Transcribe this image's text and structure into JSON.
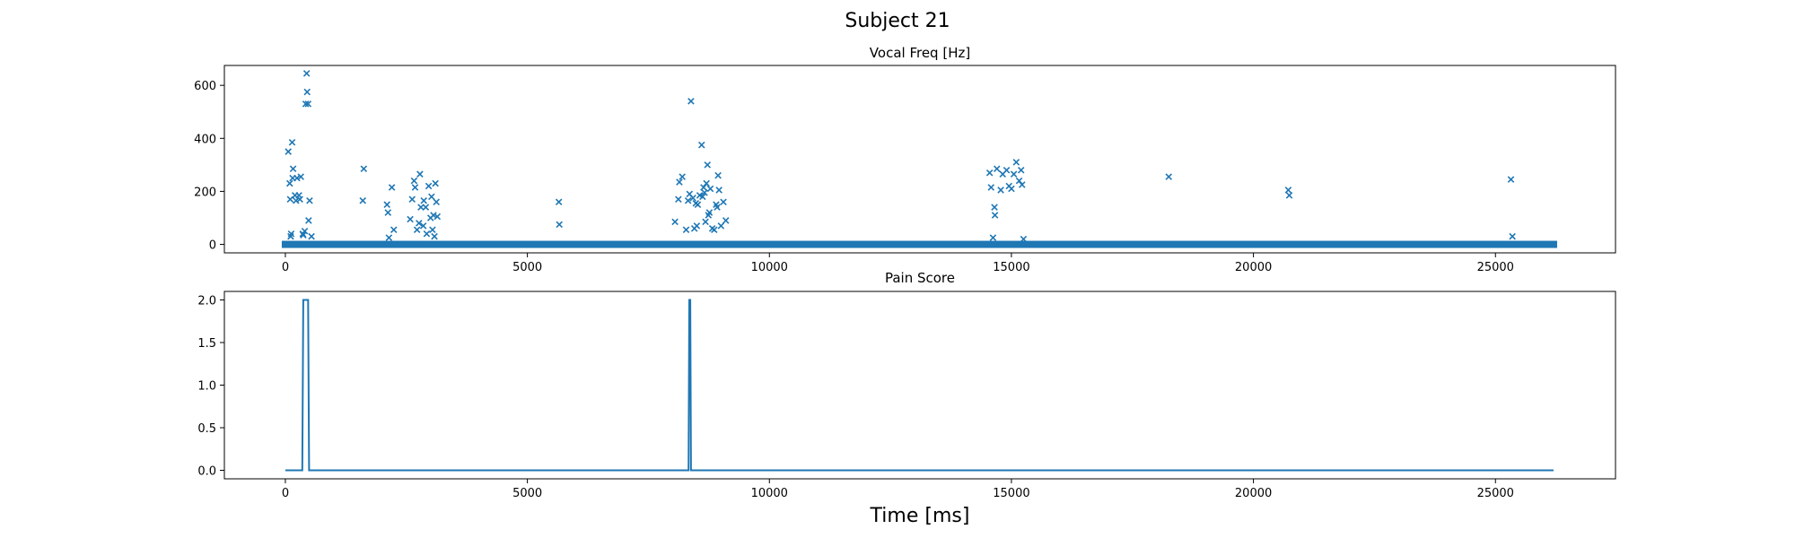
{
  "figure": {
    "suptitle": "Subject 21",
    "xlabel": "Time [ms]"
  },
  "colors": {
    "series": "#1f77b4",
    "axis": "#000000",
    "background": "#ffffff"
  },
  "chart_data": [
    {
      "type": "scatter",
      "marker": "x",
      "title": "Vocal Freq [Hz]",
      "xlabel": "",
      "ylabel": "",
      "xlim": [
        -1260,
        27480
      ],
      "ylim": [
        -32,
        675
      ],
      "xticks": [
        0,
        5000,
        10000,
        15000,
        20000,
        25000
      ],
      "xtick_labels": [
        "0",
        "5000",
        "10000",
        "15000",
        "20000",
        "25000"
      ],
      "yticks": [
        0,
        200,
        400,
        600
      ],
      "ytick_labels": [
        "0",
        "200",
        "400",
        "600"
      ],
      "grid": false,
      "baseline": {
        "y": 0,
        "x_start": 0,
        "x_end": 26200,
        "note_points_every_ms": 10
      },
      "points": [
        [
          60,
          350
        ],
        [
          90,
          230
        ],
        [
          100,
          170
        ],
        [
          110,
          30
        ],
        [
          120,
          40
        ],
        [
          140,
          385
        ],
        [
          150,
          250
        ],
        [
          160,
          285
        ],
        [
          200,
          185
        ],
        [
          220,
          165
        ],
        [
          240,
          250
        ],
        [
          280,
          185
        ],
        [
          300,
          170
        ],
        [
          320,
          255
        ],
        [
          360,
          40
        ],
        [
          370,
          35
        ],
        [
          400,
          50
        ],
        [
          420,
          530
        ],
        [
          440,
          645
        ],
        [
          450,
          575
        ],
        [
          470,
          530
        ],
        [
          480,
          90
        ],
        [
          500,
          165
        ],
        [
          540,
          30
        ],
        [
          1600,
          165
        ],
        [
          1620,
          285
        ],
        [
          2100,
          150
        ],
        [
          2120,
          120
        ],
        [
          2140,
          25
        ],
        [
          2200,
          215
        ],
        [
          2240,
          55
        ],
        [
          2580,
          95
        ],
        [
          2620,
          170
        ],
        [
          2660,
          240
        ],
        [
          2680,
          215
        ],
        [
          2720,
          55
        ],
        [
          2760,
          80
        ],
        [
          2780,
          265
        ],
        [
          2800,
          140
        ],
        [
          2850,
          70
        ],
        [
          2860,
          165
        ],
        [
          2900,
          140
        ],
        [
          2920,
          40
        ],
        [
          2960,
          220
        ],
        [
          3000,
          100
        ],
        [
          3020,
          180
        ],
        [
          3040,
          55
        ],
        [
          3060,
          110
        ],
        [
          3080,
          30
        ],
        [
          3100,
          230
        ],
        [
          3120,
          160
        ],
        [
          3140,
          105
        ],
        [
          5650,
          160
        ],
        [
          5660,
          75
        ],
        [
          8050,
          85
        ],
        [
          8120,
          170
        ],
        [
          8140,
          235
        ],
        [
          8200,
          255
        ],
        [
          8280,
          55
        ],
        [
          8320,
          165
        ],
        [
          8350,
          190
        ],
        [
          8380,
          540
        ],
        [
          8420,
          175
        ],
        [
          8450,
          60
        ],
        [
          8480,
          155
        ],
        [
          8500,
          70
        ],
        [
          8520,
          150
        ],
        [
          8560,
          185
        ],
        [
          8600,
          375
        ],
        [
          8620,
          180
        ],
        [
          8640,
          215
        ],
        [
          8660,
          195
        ],
        [
          8680,
          85
        ],
        [
          8700,
          230
        ],
        [
          8720,
          300
        ],
        [
          8740,
          110
        ],
        [
          8760,
          120
        ],
        [
          8780,
          210
        ],
        [
          8820,
          60
        ],
        [
          8860,
          55
        ],
        [
          8900,
          150
        ],
        [
          8920,
          140
        ],
        [
          8940,
          260
        ],
        [
          8960,
          205
        ],
        [
          9000,
          70
        ],
        [
          9050,
          160
        ],
        [
          9100,
          90
        ],
        [
          14550,
          270
        ],
        [
          14580,
          215
        ],
        [
          14620,
          25
        ],
        [
          14650,
          140
        ],
        [
          14660,
          110
        ],
        [
          14700,
          285
        ],
        [
          14780,
          205
        ],
        [
          14820,
          265
        ],
        [
          14900,
          280
        ],
        [
          14950,
          220
        ],
        [
          15000,
          210
        ],
        [
          15050,
          265
        ],
        [
          15100,
          310
        ],
        [
          15160,
          240
        ],
        [
          15200,
          280
        ],
        [
          15220,
          225
        ],
        [
          15250,
          20
        ],
        [
          18250,
          255
        ],
        [
          20720,
          205
        ],
        [
          20740,
          185
        ],
        [
          25320,
          245
        ],
        [
          25350,
          30
        ]
      ]
    },
    {
      "type": "line",
      "title": "Pain Score",
      "xlabel": "Time [ms]",
      "ylabel": "",
      "xlim": [
        -1260,
        27480
      ],
      "ylim": [
        -0.1,
        2.1
      ],
      "xticks": [
        0,
        5000,
        10000,
        15000,
        20000,
        25000
      ],
      "xtick_labels": [
        "0",
        "5000",
        "10000",
        "15000",
        "20000",
        "25000"
      ],
      "yticks": [
        0.0,
        0.5,
        1.0,
        1.5,
        2.0
      ],
      "ytick_labels": [
        "0.0",
        "0.5",
        "1.0",
        "1.5",
        "2.0"
      ],
      "grid": false,
      "x": [
        0,
        350,
        370,
        470,
        490,
        8330,
        8345,
        8365,
        8380,
        26200
      ],
      "y": [
        0,
        0,
        2,
        2,
        0,
        0,
        2,
        2,
        0,
        0
      ]
    }
  ]
}
